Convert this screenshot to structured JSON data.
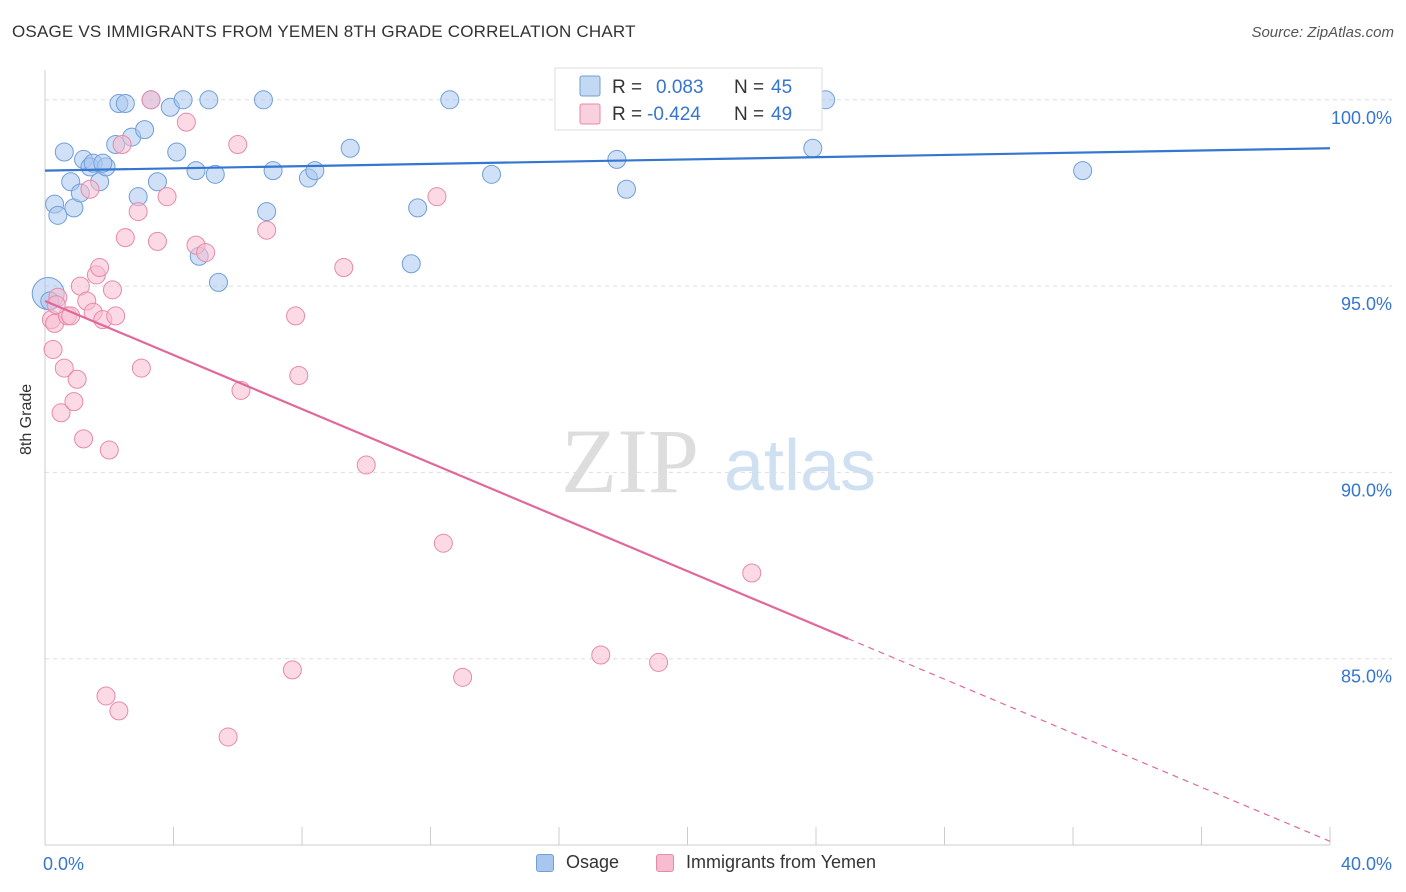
{
  "header": {
    "title": "OSAGE VS IMMIGRANTS FROM YEMEN 8TH GRADE CORRELATION CHART",
    "source": "Source: ZipAtlas.com"
  },
  "watermark": {
    "zip": "ZIP",
    "atlas": "atlas"
  },
  "legend": {
    "rows": [
      {
        "r_label": "R =",
        "r_value": "0.083",
        "n_label": "N =",
        "n_value": "45",
        "color": "#a9c7ee",
        "stroke": "#6f9fd8"
      },
      {
        "r_label": "R =",
        "r_value": "-0.424",
        "n_label": "N =",
        "n_value": "49",
        "color": "#f7bcd0",
        "stroke": "#e889aa"
      }
    ]
  },
  "bottom_legend": [
    "Osage",
    "Immigrants from Yemen"
  ],
  "chart_data": {
    "type": "scatter",
    "title": "OSAGE VS IMMIGRANTS FROM YEMEN 8TH GRADE CORRELATION CHART",
    "xlabel": "",
    "ylabel": "8th Grade",
    "xlim": [
      0,
      40
    ],
    "ylim": [
      80,
      100.8
    ],
    "x_tick_labels": [
      "0.0%",
      "40.0%"
    ],
    "y_ticks": [
      85,
      90,
      95,
      100
    ],
    "y_tick_labels": [
      "85.0%",
      "90.0%",
      "95.0%",
      "100.0%"
    ],
    "grid": true,
    "series": [
      {
        "name": "Osage",
        "color": "#a9c7ee",
        "edge": "#6f9fd8",
        "line_color": "#3476d0",
        "trend": {
          "x0": 0,
          "y0": 98.1,
          "x1": 40,
          "y1": 98.7,
          "x_solid_end": 40
        },
        "points": [
          [
            0.1,
            94.8
          ],
          [
            0.3,
            97.2
          ],
          [
            0.4,
            96.9
          ],
          [
            0.6,
            98.6
          ],
          [
            0.8,
            97.8
          ],
          [
            0.9,
            97.1
          ],
          [
            1.1,
            97.5
          ],
          [
            1.2,
            98.4
          ],
          [
            1.4,
            98.2
          ],
          [
            1.5,
            98.3
          ],
          [
            1.7,
            97.8
          ],
          [
            1.9,
            98.2
          ],
          [
            2.2,
            98.8
          ],
          [
            2.3,
            99.9
          ],
          [
            2.5,
            99.9
          ],
          [
            2.7,
            99.0
          ],
          [
            2.9,
            97.4
          ],
          [
            3.1,
            99.2
          ],
          [
            3.3,
            100.0
          ],
          [
            3.5,
            97.8
          ],
          [
            3.9,
            99.8
          ],
          [
            4.1,
            98.6
          ],
          [
            4.3,
            100.0
          ],
          [
            4.7,
            98.1
          ],
          [
            4.8,
            95.8
          ],
          [
            5.1,
            100.0
          ],
          [
            5.3,
            98.0
          ],
          [
            5.4,
            95.1
          ],
          [
            6.8,
            100.0
          ],
          [
            6.9,
            97.0
          ],
          [
            7.1,
            98.1
          ],
          [
            8.2,
            97.9
          ],
          [
            8.4,
            98.1
          ],
          [
            9.5,
            98.7
          ],
          [
            11.4,
            95.6
          ],
          [
            11.6,
            97.1
          ],
          [
            12.6,
            100.0
          ],
          [
            13.9,
            98.0
          ],
          [
            17.8,
            98.4
          ],
          [
            18.1,
            97.6
          ],
          [
            24.3,
            100.0
          ],
          [
            23.9,
            98.7
          ],
          [
            32.3,
            98.1
          ],
          [
            0.15,
            94.6
          ],
          [
            1.8,
            98.3
          ]
        ]
      },
      {
        "name": "Immigrants from Yemen",
        "color": "#f7bcd0",
        "edge": "#e889aa",
        "line_color": "#e0689a",
        "trend": {
          "x0": 0,
          "y0": 94.6,
          "x1": 40,
          "y1": 80.1,
          "x_solid_end": 25
        },
        "points": [
          [
            0.2,
            94.1
          ],
          [
            0.25,
            93.3
          ],
          [
            0.3,
            94.0
          ],
          [
            0.4,
            94.7
          ],
          [
            0.5,
            91.6
          ],
          [
            0.6,
            92.8
          ],
          [
            0.7,
            94.2
          ],
          [
            0.8,
            94.2
          ],
          [
            0.9,
            91.9
          ],
          [
            1.0,
            92.5
          ],
          [
            1.1,
            95.0
          ],
          [
            1.2,
            90.9
          ],
          [
            1.3,
            94.6
          ],
          [
            1.4,
            97.6
          ],
          [
            1.5,
            94.3
          ],
          [
            1.6,
            95.3
          ],
          [
            1.7,
            95.5
          ],
          [
            1.8,
            94.1
          ],
          [
            1.9,
            84.0
          ],
          [
            2.0,
            90.6
          ],
          [
            2.1,
            94.9
          ],
          [
            2.2,
            94.2
          ],
          [
            2.3,
            83.6
          ],
          [
            2.4,
            98.8
          ],
          [
            2.5,
            96.3
          ],
          [
            2.9,
            97.0
          ],
          [
            3.0,
            92.8
          ],
          [
            3.3,
            100.0
          ],
          [
            3.5,
            96.2
          ],
          [
            3.8,
            97.4
          ],
          [
            4.7,
            96.1
          ],
          [
            4.4,
            99.4
          ],
          [
            5.0,
            95.9
          ],
          [
            5.7,
            82.9
          ],
          [
            6.0,
            98.8
          ],
          [
            6.1,
            92.2
          ],
          [
            6.9,
            96.5
          ],
          [
            7.7,
            84.7
          ],
          [
            7.8,
            94.2
          ],
          [
            7.9,
            92.6
          ],
          [
            9.3,
            95.5
          ],
          [
            10.0,
            90.2
          ],
          [
            12.2,
            97.4
          ],
          [
            12.4,
            88.1
          ],
          [
            13.0,
            84.5
          ],
          [
            17.3,
            85.1
          ],
          [
            19.1,
            84.9
          ],
          [
            22.0,
            87.3
          ],
          [
            0.35,
            94.5
          ]
        ]
      }
    ]
  }
}
